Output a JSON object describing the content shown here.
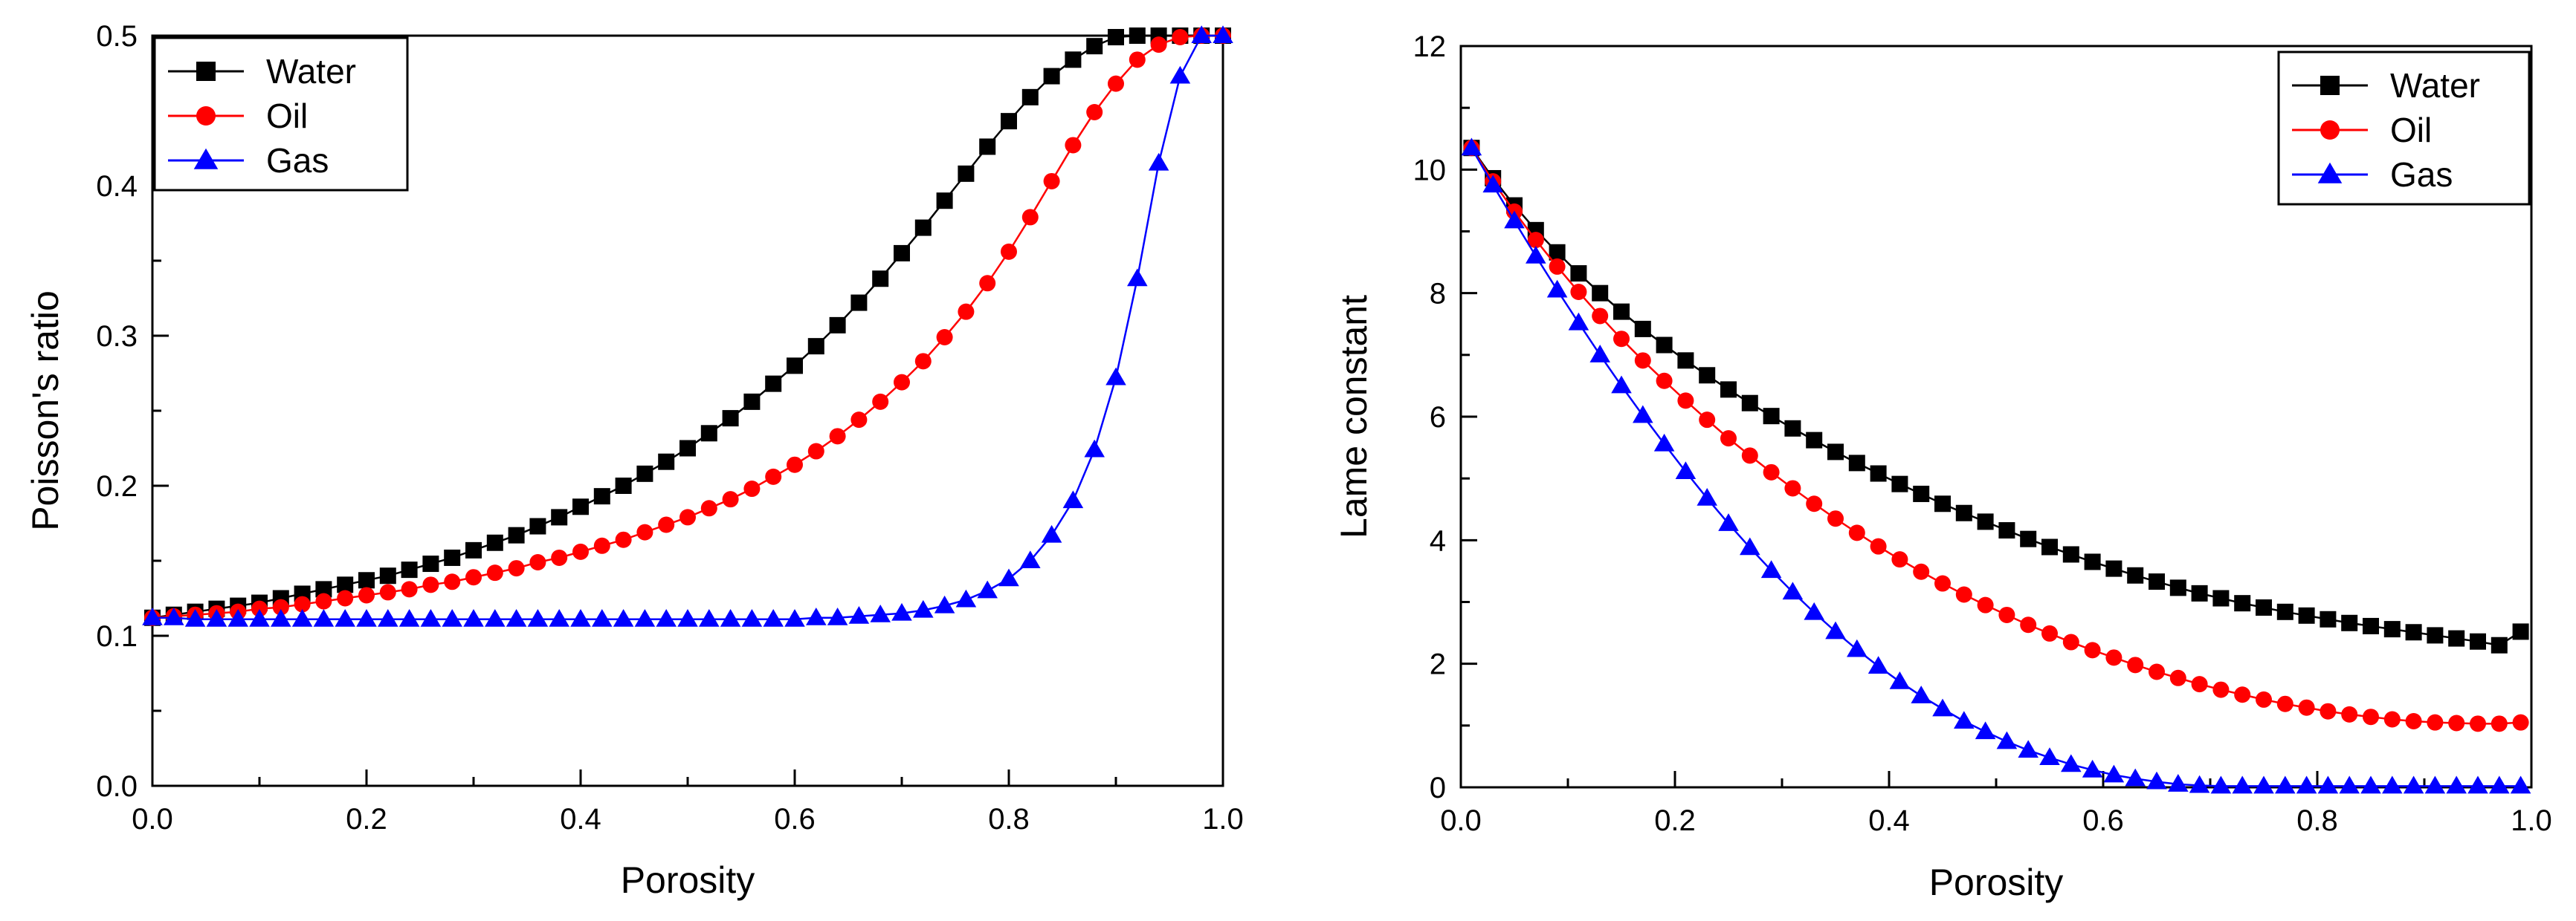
{
  "chart_data": [
    {
      "type": "line",
      "xlabel": "Porosity",
      "ylabel": "Poisson's ratio",
      "xlim": [
        0.0,
        1.0
      ],
      "ylim": [
        0.0,
        0.5
      ],
      "xticks": [
        "0.0",
        "0.2",
        "0.4",
        "0.6",
        "0.8",
        "1.0"
      ],
      "yticks": [
        "0.0",
        "0.1",
        "0.2",
        "0.3",
        "0.4",
        "0.5"
      ],
      "legend_position": "top-left",
      "x": [
        0.0,
        0.02,
        0.04,
        0.06,
        0.08,
        0.1,
        0.12,
        0.14,
        0.16,
        0.18,
        0.2,
        0.22,
        0.24,
        0.26,
        0.28,
        0.3,
        0.32,
        0.34,
        0.36,
        0.38,
        0.4,
        0.42,
        0.44,
        0.46,
        0.48,
        0.5,
        0.52,
        0.54,
        0.56,
        0.58,
        0.6,
        0.62,
        0.64,
        0.66,
        0.68,
        0.7,
        0.72,
        0.74,
        0.76,
        0.78,
        0.8,
        0.82,
        0.84,
        0.86,
        0.88,
        0.9,
        0.92,
        0.94,
        0.96,
        0.98,
        1.0
      ],
      "series": [
        {
          "name": "Water",
          "color": "#000000",
          "marker": "square",
          "values": [
            0.112,
            0.114,
            0.116,
            0.118,
            0.12,
            0.122,
            0.125,
            0.128,
            0.131,
            0.134,
            0.137,
            0.14,
            0.144,
            0.148,
            0.152,
            0.157,
            0.162,
            0.167,
            0.173,
            0.179,
            0.186,
            0.193,
            0.2,
            0.208,
            0.216,
            0.225,
            0.235,
            0.245,
            0.256,
            0.268,
            0.28,
            0.293,
            0.307,
            0.322,
            0.338,
            0.355,
            0.372,
            0.39,
            0.408,
            0.426,
            0.443,
            0.459,
            0.473,
            0.484,
            0.493,
            0.499,
            0.5,
            0.5,
            0.5,
            0.5,
            0.5
          ]
        },
        {
          "name": "Oil",
          "color": "#ff0000",
          "marker": "circle",
          "values": [
            0.112,
            0.113,
            0.114,
            0.115,
            0.116,
            0.118,
            0.119,
            0.121,
            0.123,
            0.125,
            0.127,
            0.129,
            0.131,
            0.134,
            0.136,
            0.139,
            0.142,
            0.145,
            0.149,
            0.152,
            0.156,
            0.16,
            0.164,
            0.169,
            0.174,
            0.179,
            0.185,
            0.191,
            0.198,
            0.206,
            0.214,
            0.223,
            0.233,
            0.244,
            0.256,
            0.269,
            0.283,
            0.299,
            0.316,
            0.335,
            0.356,
            0.379,
            0.403,
            0.427,
            0.449,
            0.468,
            0.484,
            0.494,
            0.499,
            0.5,
            0.5
          ]
        },
        {
          "name": "Gas",
          "color": "#0000ff",
          "marker": "triangle",
          "values": [
            0.112,
            0.112,
            0.111,
            0.111,
            0.111,
            0.111,
            0.111,
            0.111,
            0.111,
            0.111,
            0.111,
            0.111,
            0.111,
            0.111,
            0.111,
            0.111,
            0.111,
            0.111,
            0.111,
            0.111,
            0.111,
            0.111,
            0.111,
            0.111,
            0.111,
            0.111,
            0.111,
            0.111,
            0.111,
            0.111,
            0.111,
            0.112,
            0.112,
            0.113,
            0.114,
            0.115,
            0.117,
            0.12,
            0.124,
            0.13,
            0.138,
            0.15,
            0.167,
            0.19,
            0.224,
            0.272,
            0.338,
            0.415,
            0.473,
            0.5,
            0.5
          ]
        }
      ]
    },
    {
      "type": "line",
      "xlabel": "Porosity",
      "ylabel": "Lame constant",
      "xlim": [
        0.0,
        1.0
      ],
      "ylim": [
        0,
        12
      ],
      "xticks": [
        "0.0",
        "0.2",
        "0.4",
        "0.6",
        "0.8",
        "1.0"
      ],
      "yticks": [
        "0",
        "2",
        "4",
        "6",
        "8",
        "10",
        "12"
      ],
      "legend_position": "top-right",
      "x": [
        0.01,
        0.03,
        0.05,
        0.07,
        0.09,
        0.11,
        0.13,
        0.15,
        0.17,
        0.19,
        0.21,
        0.23,
        0.25,
        0.27,
        0.29,
        0.31,
        0.33,
        0.35,
        0.37,
        0.39,
        0.41,
        0.43,
        0.45,
        0.47,
        0.49,
        0.51,
        0.53,
        0.55,
        0.57,
        0.59,
        0.61,
        0.63,
        0.65,
        0.67,
        0.69,
        0.71,
        0.73,
        0.75,
        0.77,
        0.79,
        0.81,
        0.83,
        0.85,
        0.87,
        0.89,
        0.91,
        0.93,
        0.95,
        0.97,
        0.99
      ],
      "series": [
        {
          "name": "Water",
          "color": "#000000",
          "marker": "square",
          "values": [
            10.35,
            9.86,
            9.42,
            9.02,
            8.66,
            8.32,
            8.0,
            7.7,
            7.42,
            7.16,
            6.91,
            6.67,
            6.44,
            6.22,
            6.01,
            5.81,
            5.62,
            5.43,
            5.25,
            5.08,
            4.91,
            4.75,
            4.59,
            4.44,
            4.3,
            4.16,
            4.02,
            3.89,
            3.77,
            3.65,
            3.54,
            3.43,
            3.33,
            3.23,
            3.14,
            3.06,
            2.98,
            2.91,
            2.84,
            2.78,
            2.72,
            2.66,
            2.61,
            2.56,
            2.51,
            2.46,
            2.41,
            2.36,
            2.3,
            2.52
          ]
        },
        {
          "name": "Oil",
          "color": "#ff0000",
          "marker": "circle",
          "values": [
            10.35,
            9.81,
            9.32,
            8.86,
            8.43,
            8.02,
            7.63,
            7.26,
            6.91,
            6.58,
            6.26,
            5.95,
            5.65,
            5.37,
            5.1,
            4.84,
            4.59,
            4.35,
            4.12,
            3.9,
            3.69,
            3.49,
            3.3,
            3.12,
            2.95,
            2.79,
            2.63,
            2.49,
            2.35,
            2.22,
            2.1,
            1.98,
            1.87,
            1.77,
            1.67,
            1.58,
            1.5,
            1.42,
            1.35,
            1.29,
            1.23,
            1.18,
            1.14,
            1.1,
            1.07,
            1.05,
            1.04,
            1.03,
            1.03,
            1.05
          ]
        },
        {
          "name": "Gas",
          "color": "#0000ff",
          "marker": "triangle",
          "values": [
            10.35,
            9.75,
            9.17,
            8.6,
            8.05,
            7.52,
            7.0,
            6.5,
            6.02,
            5.56,
            5.11,
            4.68,
            4.27,
            3.88,
            3.51,
            3.16,
            2.83,
            2.52,
            2.23,
            1.96,
            1.71,
            1.48,
            1.27,
            1.07,
            0.9,
            0.74,
            0.6,
            0.48,
            0.37,
            0.28,
            0.2,
            0.14,
            0.09,
            0.05,
            0.03,
            0.02,
            0.02,
            0.02,
            0.02,
            0.02,
            0.02,
            0.02,
            0.02,
            0.02,
            0.02,
            0.02,
            0.02,
            0.02,
            0.02,
            0.02
          ]
        }
      ]
    }
  ]
}
